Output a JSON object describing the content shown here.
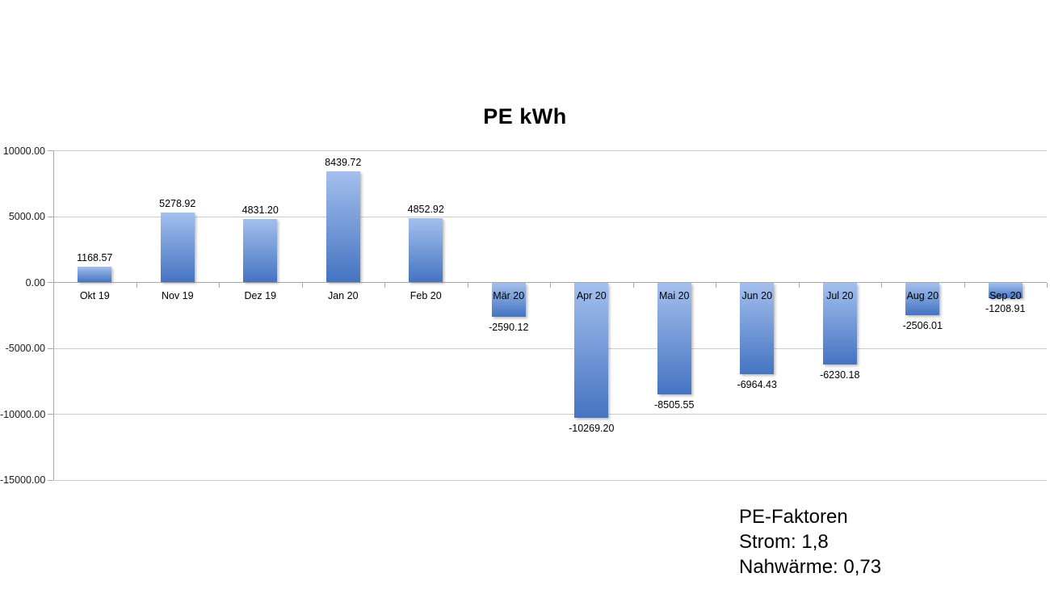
{
  "chart_data": {
    "type": "bar",
    "title": "PE kWh",
    "categories": [
      "Okt 19",
      "Nov 19",
      "Dez 19",
      "Jan 20",
      "Feb 20",
      "Mär 20",
      "Apr 20",
      "Mai 20",
      "Jun 20",
      "Jul 20",
      "Aug 20",
      "Sep 20"
    ],
    "values": [
      1168.57,
      5278.92,
      4831.2,
      8439.72,
      4852.92,
      -2590.12,
      -10269.2,
      -8505.55,
      -6964.43,
      -6230.18,
      -2506.01,
      -1208.91
    ],
    "data_labels": [
      "1168.57",
      "5278.92",
      "4831.20",
      "8439.72",
      "4852.92",
      "-2590.12",
      "-10269.20",
      "-8505.55",
      "-6964.43",
      "-6230.18",
      "-2506.01",
      "-1208.91"
    ],
    "xlabel": "",
    "ylabel": "",
    "ylim": [
      -15000,
      10000
    ],
    "y_ticks": [
      {
        "value": 10000,
        "label": "10000.00"
      },
      {
        "value": 5000,
        "label": "5000.00"
      },
      {
        "value": 0,
        "label": "0.00"
      },
      {
        "value": -5000,
        "label": "-5000.00"
      },
      {
        "value": -10000,
        "label": "-10000.00"
      },
      {
        "value": -15000,
        "label": "-15000.00"
      }
    ],
    "grid": true,
    "legend_position": "none",
    "colors": {
      "bar_gradient_top": "#A3BFED",
      "bar_gradient_bottom": "#4574C2",
      "gridline": "#cdcdcd",
      "axis": "#a8a8a8",
      "background": "#ffffff",
      "text": "#000000"
    }
  },
  "annotation": {
    "lines": [
      "PE-Faktoren",
      "Strom: 1,8",
      "Nahwärme: 0,73"
    ]
  }
}
